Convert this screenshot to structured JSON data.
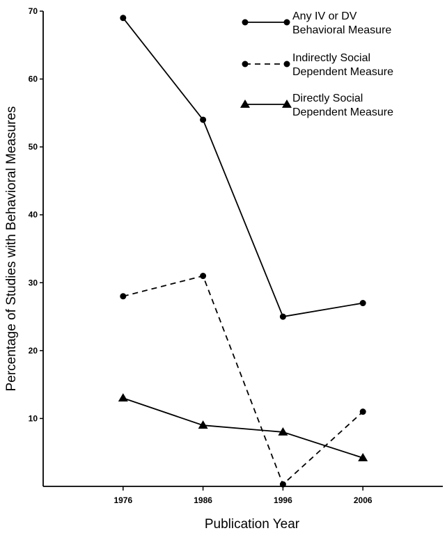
{
  "chart_data": {
    "type": "line",
    "title": "",
    "xlabel": "Publication Year",
    "ylabel": "Percentage of Studies with Behavioral Measures",
    "categories": [
      "1976",
      "1986",
      "1996",
      "2006"
    ],
    "x_range": [
      1966,
      2016
    ],
    "ylim": [
      0,
      70
    ],
    "yticks": [
      10,
      20,
      30,
      40,
      50,
      60,
      70
    ],
    "grid": false,
    "legend_position": "top-right",
    "series": [
      {
        "name_lines": [
          "Any IV or DV",
          "Behavioral Measure"
        ],
        "values": [
          69,
          54,
          25,
          27
        ],
        "line_style": "solid",
        "marker": "circle",
        "color": "#000000"
      },
      {
        "name_lines": [
          "Indirectly Social",
          "Dependent Measure"
        ],
        "values": [
          28,
          31,
          0.3,
          11
        ],
        "line_style": "dashed",
        "marker": "circle",
        "color": "#000000"
      },
      {
        "name_lines": [
          "Directly Social",
          "Dependent Measure"
        ],
        "values": [
          13,
          9,
          8,
          4.2
        ],
        "line_style": "solid",
        "marker": "triangle",
        "color": "#000000"
      }
    ]
  }
}
